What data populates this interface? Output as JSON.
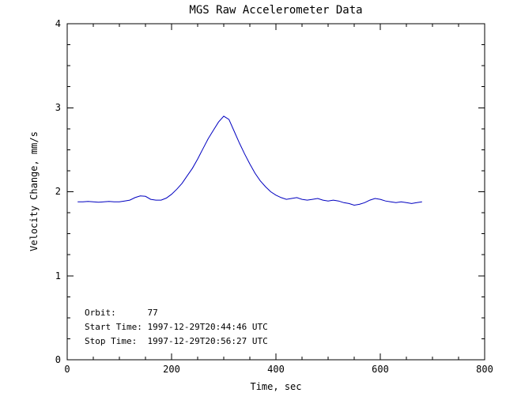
{
  "chart_data": {
    "type": "line",
    "title": "MGS Raw Accelerometer Data",
    "xlabel": "Time, sec",
    "ylabel": "Velocity Change, mm/s",
    "xlim": [
      0,
      800
    ],
    "ylim": [
      0,
      4
    ],
    "xticks": [
      0,
      200,
      400,
      600,
      800
    ],
    "yticks": [
      0,
      1,
      2,
      3,
      4
    ],
    "xtick_labels": [
      "0",
      "200",
      "400",
      "600",
      "800"
    ],
    "ytick_labels": [
      "0",
      "1",
      "2",
      "3",
      "4"
    ],
    "x_minor_interval": 50,
    "y_minor_interval": 0.25,
    "grid": false,
    "legend": "none",
    "line_color": "#0000c0",
    "series": [
      {
        "name": "velocity_change",
        "x": [
          20,
          30,
          40,
          50,
          60,
          70,
          80,
          90,
          100,
          110,
          120,
          130,
          140,
          150,
          160,
          170,
          180,
          190,
          200,
          210,
          220,
          230,
          240,
          250,
          260,
          270,
          280,
          290,
          300,
          310,
          320,
          330,
          340,
          350,
          360,
          370,
          380,
          390,
          400,
          410,
          420,
          430,
          440,
          450,
          460,
          470,
          480,
          490,
          500,
          510,
          520,
          530,
          540,
          550,
          560,
          570,
          580,
          590,
          600,
          610,
          620,
          630,
          640,
          650,
          660,
          670,
          680
        ],
        "y": [
          1.88,
          1.88,
          1.885,
          1.88,
          1.875,
          1.88,
          1.885,
          1.88,
          1.88,
          1.89,
          1.9,
          1.93,
          1.95,
          1.945,
          1.91,
          1.9,
          1.9,
          1.925,
          1.97,
          2.03,
          2.1,
          2.19,
          2.28,
          2.39,
          2.51,
          2.63,
          2.73,
          2.83,
          2.9,
          2.86,
          2.72,
          2.58,
          2.45,
          2.33,
          2.22,
          2.13,
          2.06,
          2.0,
          1.96,
          1.93,
          1.91,
          1.92,
          1.93,
          1.91,
          1.9,
          1.91,
          1.92,
          1.9,
          1.89,
          1.9,
          1.89,
          1.87,
          1.86,
          1.84,
          1.85,
          1.87,
          1.9,
          1.92,
          1.91,
          1.89,
          1.88,
          1.87,
          1.88,
          1.87,
          1.86,
          1.87,
          1.88
        ]
      }
    ],
    "annotations": {
      "lines": [
        "Orbit:      77",
        "Start Time: 1997-12-29T20:44:46 UTC",
        "Stop Time:  1997-12-29T20:56:27 UTC"
      ]
    }
  }
}
